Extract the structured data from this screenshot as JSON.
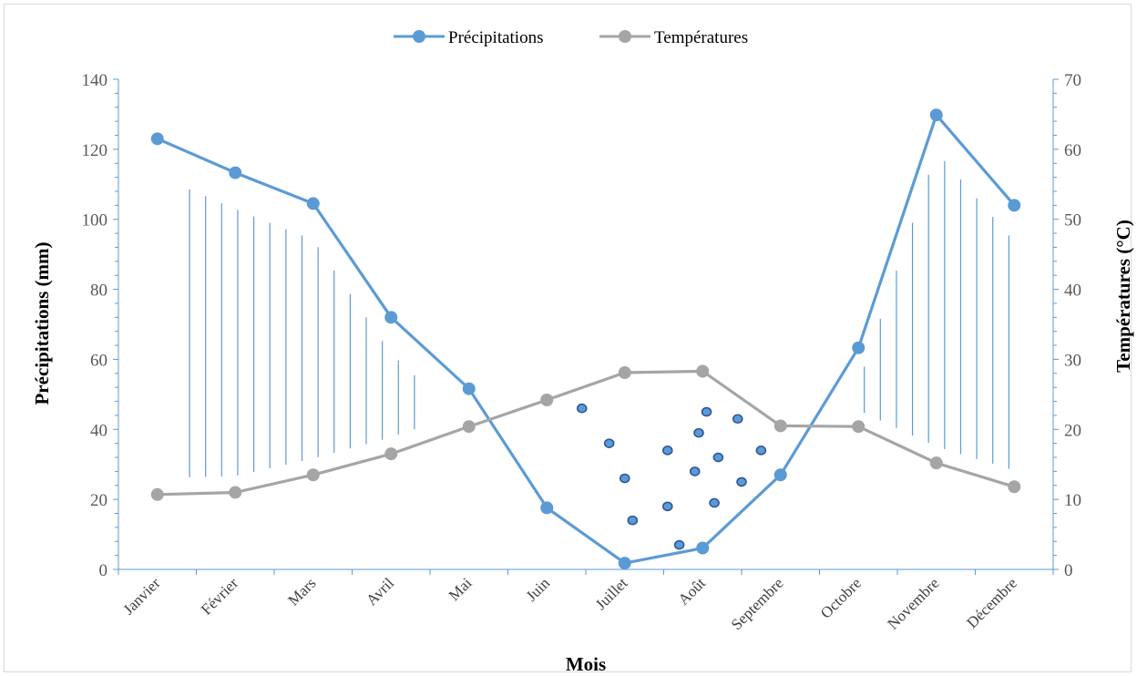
{
  "chart_data": {
    "type": "line",
    "title": "",
    "categories": [
      "Janvier",
      "Février",
      "Mars",
      "Avril",
      "Mai",
      "Juin",
      "Juillet",
      "Août",
      "Septembre",
      "Octobre",
      "Novembre",
      "Décembre"
    ],
    "series": [
      {
        "name": "Précipitations",
        "axis": "left",
        "color": "#5b9bd5",
        "values": [
          123,
          113.3,
          104.5,
          72,
          51.6,
          17.6,
          1.8,
          6.1,
          27,
          63.3,
          129.8,
          104
        ]
      },
      {
        "name": "Températures",
        "axis": "right",
        "color": "#a5a5a5",
        "values": [
          10.7,
          11,
          13.5,
          16.5,
          20.4,
          24.2,
          28.1,
          28.3,
          20.5,
          20.4,
          15.2,
          11.8
        ]
      }
    ],
    "xlabel": "Mois",
    "ylabel_left": "Précipitations (mm)",
    "ylabel_right": "Températures (°C)",
    "ylim_left": [
      0,
      140
    ],
    "ylim_right": [
      0,
      70
    ],
    "yticks_left": [
      "0",
      "20",
      "40",
      "60",
      "80",
      "100",
      "120",
      "140"
    ],
    "yticks_right": [
      "0",
      "10",
      "20",
      "30",
      "40",
      "50",
      "60",
      "70"
    ],
    "grid": false,
    "legend_position": "top",
    "shading": {
      "humid_periods": "vertical hatching where precipitation exceeds twice the temperature",
      "dry_period": "dotted area between Juin and Septembre where precipitation is below twice the temperature"
    }
  }
}
